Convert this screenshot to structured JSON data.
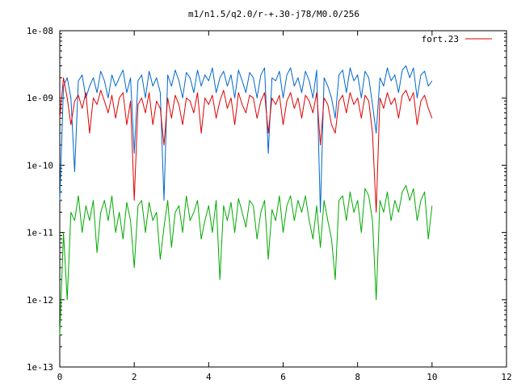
{
  "chart_data": {
    "type": "line",
    "title": "m1/n1.5/q2.0/r-+.30-j78/M0.0/256",
    "xlabel": "",
    "ylabel": "",
    "xlim": [
      0,
      12
    ],
    "ylim": [
      1e-13,
      1e-08
    ],
    "yscale": "log",
    "grid": false,
    "legend_position": "top-right",
    "x_ticks": [
      0,
      2,
      4,
      6,
      8,
      10,
      12
    ],
    "x_tick_labels": [
      "0",
      "2",
      "4",
      "6",
      "8",
      "10",
      "12"
    ],
    "y_ticks": [
      1e-13,
      1e-12,
      1e-11,
      1e-10,
      1e-09,
      1e-08
    ],
    "y_tick_labels": [
      "1e-13",
      "1e-12",
      "1e-11",
      "1e-10",
      "1e-09",
      "1e-08"
    ],
    "series": [
      {
        "name": "fort.23",
        "color": "#e00000",
        "x": [
          0.0,
          0.1,
          0.2,
          0.3,
          0.4,
          0.5,
          0.6,
          0.7,
          0.8,
          0.9,
          1.0,
          1.1,
          1.2,
          1.3,
          1.4,
          1.5,
          1.6,
          1.7,
          1.8,
          1.9,
          2.0,
          2.1,
          2.2,
          2.3,
          2.4,
          2.5,
          2.6,
          2.7,
          2.8,
          2.9,
          3.0,
          3.1,
          3.2,
          3.3,
          3.4,
          3.5,
          3.6,
          3.7,
          3.8,
          3.9,
          4.0,
          4.1,
          4.2,
          4.3,
          4.4,
          4.5,
          4.6,
          4.7,
          4.8,
          4.9,
          5.0,
          5.1,
          5.2,
          5.3,
          5.4,
          5.5,
          5.6,
          5.7,
          5.8,
          5.9,
          6.0,
          6.1,
          6.2,
          6.3,
          6.4,
          6.5,
          6.6,
          6.7,
          6.8,
          6.9,
          7.0,
          7.1,
          7.2,
          7.3,
          7.4,
          7.5,
          7.6,
          7.7,
          7.8,
          7.9,
          8.0,
          8.1,
          8.2,
          8.3,
          8.4,
          8.5,
          8.6,
          8.7,
          8.8,
          8.9,
          9.0,
          9.1,
          9.2,
          9.3,
          9.4,
          9.5,
          9.6,
          9.7,
          9.8,
          9.9,
          10.0
        ],
        "y": [
          5e-10,
          2e-09,
          1e-09,
          4e-10,
          9e-10,
          1.1e-09,
          7e-10,
          1.2e-09,
          3e-10,
          1e-09,
          8e-10,
          1.3e-09,
          9e-10,
          6e-10,
          1.1e-09,
          5e-10,
          1e-09,
          1.2e-09,
          4e-10,
          9e-10,
          3e-11,
          8e-10,
          1e-09,
          6e-10,
          1.2e-09,
          4e-10,
          9e-10,
          7e-10,
          2e-10,
          1e-09,
          5e-10,
          1.1e-09,
          8e-10,
          4e-10,
          1e-09,
          9e-10,
          6e-10,
          1.2e-09,
          3e-10,
          1e-09,
          8e-10,
          1.1e-09,
          5e-10,
          9e-10,
          1.3e-09,
          7e-10,
          1e-09,
          4e-10,
          1.2e-09,
          8e-10,
          6e-10,
          1.1e-09,
          1e-09,
          5e-10,
          9e-10,
          1.2e-09,
          3e-10,
          1e-09,
          8e-10,
          1.1e-09,
          4e-10,
          9e-10,
          1.2e-09,
          7e-10,
          1e-09,
          5e-10,
          1.1e-09,
          9e-10,
          6e-10,
          1.2e-09,
          2e-10,
          1e-09,
          8e-10,
          4e-10,
          3e-10,
          9e-10,
          1.1e-09,
          6e-10,
          1.2e-09,
          8e-10,
          1e-09,
          5e-10,
          1.1e-09,
          9e-10,
          3e-10,
          2e-11,
          1e-09,
          7e-10,
          1.2e-09,
          8e-10,
          1e-09,
          5e-10,
          1.1e-09,
          1.3e-09,
          9e-10,
          1.2e-09,
          4e-10,
          9e-10,
          1.1e-09,
          7e-10,
          5e-10
        ]
      },
      {
        "name": "",
        "color": "#0066cc",
        "x": [
          0.0,
          0.1,
          0.2,
          0.3,
          0.4,
          0.5,
          0.6,
          0.7,
          0.8,
          0.9,
          1.0,
          1.1,
          1.2,
          1.3,
          1.4,
          1.5,
          1.6,
          1.7,
          1.8,
          1.9,
          2.0,
          2.1,
          2.2,
          2.3,
          2.4,
          2.5,
          2.6,
          2.7,
          2.8,
          2.9,
          3.0,
          3.1,
          3.2,
          3.3,
          3.4,
          3.5,
          3.6,
          3.7,
          3.8,
          3.9,
          4.0,
          4.1,
          4.2,
          4.3,
          4.4,
          4.5,
          4.6,
          4.7,
          4.8,
          4.9,
          5.0,
          5.1,
          5.2,
          5.3,
          5.4,
          5.5,
          5.6,
          5.7,
          5.8,
          5.9,
          6.0,
          6.1,
          6.2,
          6.3,
          6.4,
          6.5,
          6.6,
          6.7,
          6.8,
          6.9,
          7.0,
          7.1,
          7.2,
          7.3,
          7.4,
          7.5,
          7.6,
          7.7,
          7.8,
          7.9,
          8.0,
          8.1,
          8.2,
          8.3,
          8.4,
          8.5,
          8.6,
          8.7,
          8.8,
          8.9,
          9.0,
          9.1,
          9.2,
          9.3,
          9.4,
          9.5,
          9.6,
          9.7,
          9.8,
          9.9,
          10.0
        ],
        "y": [
          3e-11,
          1.5e-09,
          2e-09,
          1e-09,
          8e-11,
          1.8e-09,
          2.2e-09,
          1e-09,
          1.5e-09,
          2e-09,
          1.2e-09,
          2.5e-09,
          1.8e-09,
          1e-09,
          2.2e-09,
          1.5e-09,
          2e-09,
          2.6e-09,
          1.2e-09,
          2e-09,
          1.5e-10,
          1.8e-09,
          2.2e-09,
          1e-09,
          2.5e-09,
          1.5e-09,
          2e-09,
          1.2e-09,
          3e-11,
          2.2e-09,
          1.5e-09,
          2.6e-09,
          1.8e-09,
          1e-09,
          2.4e-09,
          2e-09,
          1.2e-09,
          2.6e-09,
          1.5e-09,
          2.2e-09,
          1.8e-09,
          2.8e-09,
          1.2e-09,
          2e-09,
          2.5e-09,
          1.5e-09,
          2.2e-09,
          1e-09,
          2.6e-09,
          1.8e-09,
          1.2e-09,
          2.4e-09,
          2e-09,
          1e-09,
          2.2e-09,
          2.8e-09,
          1.5e-10,
          2e-09,
          1.8e-09,
          2.5e-09,
          1e-09,
          2.2e-09,
          2.8e-09,
          1.5e-09,
          2e-09,
          1.2e-09,
          2.5e-09,
          1.8e-09,
          1e-09,
          2.6e-09,
          2e-11,
          2e-09,
          1.5e-09,
          1e-09,
          5e-10,
          2.2e-09,
          2.6e-09,
          1.2e-09,
          2.8e-09,
          1.8e-09,
          2.2e-09,
          1e-09,
          2.5e-09,
          2e-09,
          8e-10,
          3e-10,
          2e-09,
          1.5e-09,
          2.8e-09,
          1.8e-09,
          2.2e-09,
          1.2e-09,
          2.6e-09,
          3e-09,
          2e-09,
          2.8e-09,
          1e-09,
          2.2e-09,
          2.5e-09,
          1.5e-09,
          1.8e-09
        ]
      },
      {
        "name": "",
        "color": "#00aa00",
        "x": [
          0.0,
          0.1,
          0.2,
          0.3,
          0.4,
          0.5,
          0.6,
          0.7,
          0.8,
          0.9,
          1.0,
          1.1,
          1.2,
          1.3,
          1.4,
          1.5,
          1.6,
          1.7,
          1.8,
          1.9,
          2.0,
          2.1,
          2.2,
          2.3,
          2.4,
          2.5,
          2.6,
          2.7,
          2.8,
          2.9,
          3.0,
          3.1,
          3.2,
          3.3,
          3.4,
          3.5,
          3.6,
          3.7,
          3.8,
          3.9,
          4.0,
          4.1,
          4.2,
          4.3,
          4.4,
          4.5,
          4.6,
          4.7,
          4.8,
          4.9,
          5.0,
          5.1,
          5.2,
          5.3,
          5.4,
          5.5,
          5.6,
          5.7,
          5.8,
          5.9,
          6.0,
          6.1,
          6.2,
          6.3,
          6.4,
          6.5,
          6.6,
          6.7,
          6.8,
          6.9,
          7.0,
          7.1,
          7.2,
          7.3,
          7.4,
          7.5,
          7.6,
          7.7,
          7.8,
          7.9,
          8.0,
          8.1,
          8.2,
          8.3,
          8.4,
          8.5,
          8.6,
          8.7,
          8.8,
          8.9,
          9.0,
          9.1,
          9.2,
          9.3,
          9.4,
          9.5,
          9.6,
          9.7,
          9.8,
          9.9,
          10.0
        ],
        "y": [
          3e-13,
          1e-11,
          1e-12,
          2e-11,
          1.5e-11,
          3.5e-11,
          1e-11,
          2.5e-11,
          1.5e-11,
          3e-11,
          5e-12,
          2e-11,
          3e-11,
          1.5e-11,
          3.5e-11,
          1e-11,
          2e-11,
          8e-12,
          2.8e-11,
          1.5e-11,
          3e-12,
          2.5e-11,
          3e-11,
          1e-11,
          2.8e-11,
          1.5e-11,
          2e-11,
          4e-12,
          1.2e-11,
          3e-11,
          6e-12,
          2e-11,
          2.5e-11,
          1e-11,
          3.5e-11,
          1.5e-11,
          2e-11,
          3e-11,
          8e-12,
          1.5e-11,
          2.5e-11,
          1e-11,
          3e-11,
          2e-12,
          2.5e-11,
          1.5e-11,
          2.8e-11,
          1e-11,
          3.2e-11,
          2e-11,
          1.2e-11,
          3e-11,
          2.5e-11,
          8e-12,
          2e-11,
          3e-11,
          4e-12,
          2.2e-11,
          1.5e-11,
          3.5e-11,
          1e-11,
          2.5e-11,
          3.5e-11,
          1.5e-11,
          3e-11,
          2e-11,
          3.5e-11,
          1.5e-11,
          8e-12,
          2.5e-11,
          6e-12,
          3e-11,
          1.5e-11,
          8e-12,
          2e-12,
          3e-11,
          3.5e-11,
          1.5e-11,
          4e-11,
          2e-11,
          3e-11,
          1e-11,
          4.5e-11,
          3.5e-11,
          1.5e-11,
          1e-12,
          3e-11,
          2e-11,
          4e-11,
          1.5e-11,
          3e-11,
          2e-11,
          4e-11,
          5e-11,
          3e-11,
          4.5e-11,
          1.5e-11,
          3e-11,
          4e-11,
          8e-12,
          2.5e-11
        ]
      }
    ]
  }
}
